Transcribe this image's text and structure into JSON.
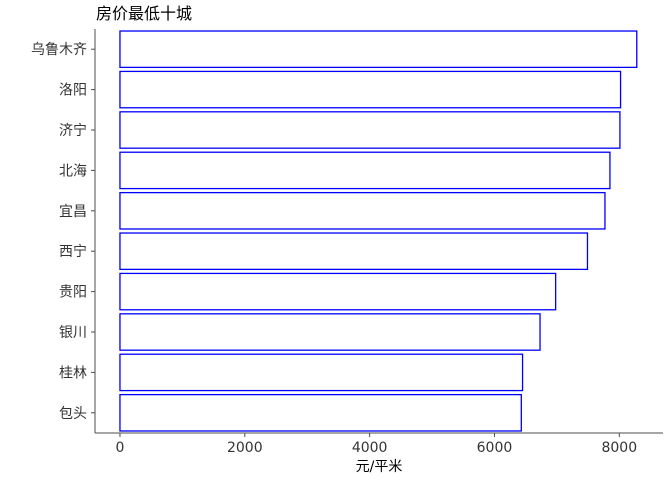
{
  "chart_data": {
    "type": "bar",
    "orientation": "horizontal",
    "title": "房价最低十城",
    "xlabel": "元/平米",
    "ylabel": "",
    "categories": [
      "乌鲁木齐",
      "洛阳",
      "济宁",
      "北海",
      "宜昌",
      "西宁",
      "贵阳",
      "银川",
      "桂林",
      "包头"
    ],
    "values": [
      8280,
      8020,
      8010,
      7850,
      7770,
      7490,
      6980,
      6730,
      6450,
      6430
    ],
    "xlim": [
      -400,
      8700
    ],
    "xticks": [
      0,
      2000,
      4000,
      6000,
      8000
    ],
    "grid": false,
    "legend": "none",
    "bar_fill": "#ffffff",
    "bar_stroke": "#0000ff",
    "axis_color": "#4d4d4d"
  }
}
